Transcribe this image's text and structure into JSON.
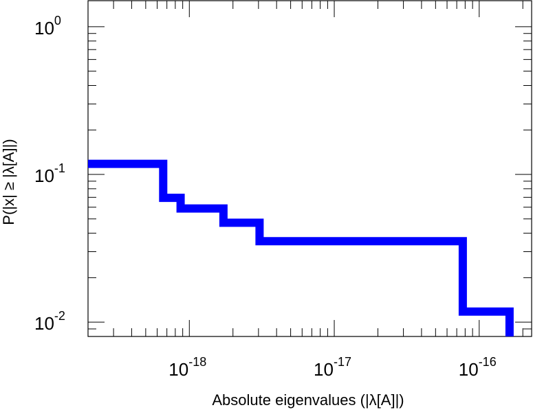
{
  "chart_data": {
    "type": "line",
    "step": true,
    "x_scale": "log",
    "y_scale": "log",
    "xlabel": "Absolute eigenvalues (|λ[A]|)",
    "ylabel": "P(|x| ≥ |λ[A]|)",
    "xlim": [
      2e-19,
      2.3e-16
    ],
    "ylim": [
      0.008,
      1.5
    ],
    "grid": false,
    "legend": "none",
    "x_ticks": [
      {
        "value": 1e-18,
        "base": "10",
        "exp": "-18"
      },
      {
        "value": 1e-17,
        "base": "10",
        "exp": "-17"
      },
      {
        "value": 1e-16,
        "base": "10",
        "exp": "-16"
      }
    ],
    "y_ticks": [
      {
        "value": 1,
        "base": "10",
        "exp": "0"
      },
      {
        "value": 0.1,
        "base": "10",
        "exp": "-1"
      },
      {
        "value": 0.01,
        "base": "10",
        "exp": "-2"
      }
    ],
    "series": [
      {
        "color": "#0000ff",
        "x": [
          2e-19,
          6.6e-19,
          6.6e-19,
          8.7e-19,
          8.7e-19,
          1.72e-18,
          1.72e-18,
          3.05e-18,
          3.05e-18,
          7.7e-17,
          7.7e-17,
          1.62e-16,
          1.62e-16
        ],
        "y": [
          0.118,
          0.118,
          0.0694,
          0.0694,
          0.0588,
          0.0588,
          0.0471,
          0.0471,
          0.0353,
          0.0353,
          0.0118,
          0.0118,
          0.008
        ]
      }
    ]
  }
}
